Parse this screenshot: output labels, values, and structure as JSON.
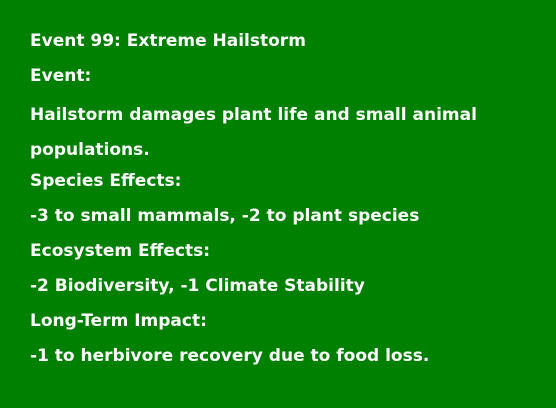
{
  "event_card": {
    "title": "Event 99: Extreme Hailstorm",
    "event_label": "Event:",
    "event_description": "Hailstorm damages plant life and small animal populations.",
    "species_label": "Species Effects:",
    "species_effects": "-3 to small mammals, -2 to plant species",
    "ecosystem_label": "Ecosystem Effects:",
    "ecosystem_effects": "-2 Biodiversity, -1 Climate Stability",
    "longterm_label": "Long-Term Impact:",
    "longterm_effects": "-1 to herbivore recovery due to food loss."
  },
  "colors": {
    "background": "#008000",
    "text": "#ffffff"
  }
}
